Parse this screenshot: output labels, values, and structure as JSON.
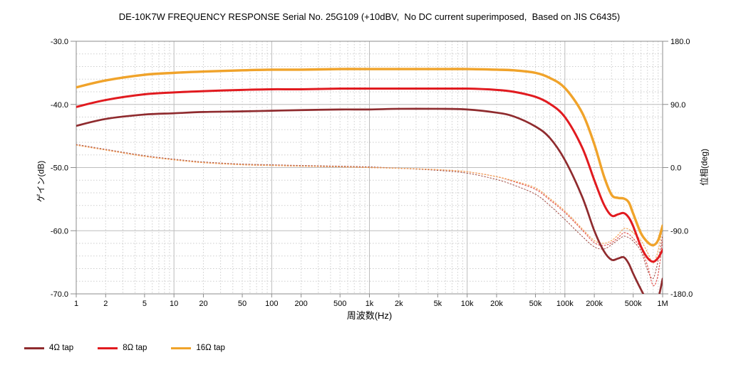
{
  "title": "DE-10K7W FREQUENCY RESPONSE Serial No. 25G109 (+10dBV,  No DC current superimposed,  Based on JIS C6435)",
  "colors": {
    "background": "#ffffff",
    "grid_major": "#bdbdbd",
    "grid_minor": "#cdcdcd",
    "frame": "#8c8c8c",
    "text": "#000000",
    "tap4": "#8f2b2e",
    "tap8": "#e11a1f",
    "tap16": "#f0a32a"
  },
  "chart_data": {
    "type": "line",
    "title": "DE-10K7W FREQUENCY RESPONSE Serial No. 25G109 (+10dBV,  No DC current superimposed,  Based on JIS C6435)",
    "xlabel": "周波数(Hz)",
    "ylabel_left": "ゲイン(dB)",
    "ylabel_right": "位相(deg)",
    "x_scale": "log",
    "x_range": [
      1,
      1000000
    ],
    "y_left_range": [
      -70,
      -30
    ],
    "y_right_range": [
      -180,
      180
    ],
    "grid": "on",
    "legend_position": "bottom-left",
    "x_ticks": [
      {
        "v": 1,
        "label": "1"
      },
      {
        "v": 2,
        "label": "2"
      },
      {
        "v": 5,
        "label": "5"
      },
      {
        "v": 10,
        "label": "10"
      },
      {
        "v": 20,
        "label": "20"
      },
      {
        "v": 50,
        "label": "50"
      },
      {
        "v": 100,
        "label": "100"
      },
      {
        "v": 200,
        "label": "200"
      },
      {
        "v": 500,
        "label": "500"
      },
      {
        "v": 1000,
        "label": "1k"
      },
      {
        "v": 2000,
        "label": "2k"
      },
      {
        "v": 5000,
        "label": "5k"
      },
      {
        "v": 10000,
        "label": "10k"
      },
      {
        "v": 20000,
        "label": "20k"
      },
      {
        "v": 50000,
        "label": "50k"
      },
      {
        "v": 100000,
        "label": "100k"
      },
      {
        "v": 200000,
        "label": "200k"
      },
      {
        "v": 500000,
        "label": "500k"
      },
      {
        "v": 1000000,
        "label": "1M"
      }
    ],
    "y_left_ticks": [
      {
        "v": -30,
        "label": "-30.0"
      },
      {
        "v": -40,
        "label": "-40.0"
      },
      {
        "v": -50,
        "label": "-50.0"
      },
      {
        "v": -60,
        "label": "-60.0"
      },
      {
        "v": -70,
        "label": "-70.0"
      }
    ],
    "y_right_ticks": [
      {
        "v": 180,
        "label": "180.0"
      },
      {
        "v": 90,
        "label": "90.0"
      },
      {
        "v": 0,
        "label": "0.0"
      },
      {
        "v": -90,
        "label": "-90.0"
      },
      {
        "v": -180,
        "label": "-180.0"
      }
    ],
    "x": [
      1,
      2,
      5,
      10,
      20,
      50,
      100,
      200,
      500,
      1000,
      2000,
      5000,
      10000,
      20000,
      30000,
      50000,
      70000,
      100000,
      150000,
      200000,
      250000,
      300000,
      350000,
      400000,
      450000,
      500000,
      600000,
      700000,
      800000,
      900000,
      1000000
    ],
    "series": [
      {
        "name": "4Ω tap",
        "kind": "gain",
        "axis": "left",
        "style": "solid",
        "color": "#8f2b2e",
        "width": 2.7,
        "values": [
          -43.4,
          -42.3,
          -41.6,
          -41.4,
          -41.2,
          -41.1,
          -41.0,
          -40.9,
          -40.8,
          -40.8,
          -40.7,
          -40.7,
          -40.8,
          -41.3,
          -41.9,
          -43.5,
          -45.3,
          -48.8,
          -54.6,
          -60.0,
          -63.2,
          -64.6,
          -64.4,
          -64.2,
          -65.2,
          -66.8,
          -69.3,
          -71.2,
          -72.4,
          -70.8,
          -67.6
        ]
      },
      {
        "name": "8Ω tap",
        "kind": "gain",
        "axis": "left",
        "style": "solid",
        "color": "#e11a1f",
        "width": 3.0,
        "values": [
          -40.4,
          -39.3,
          -38.4,
          -38.1,
          -37.9,
          -37.7,
          -37.6,
          -37.6,
          -37.5,
          -37.5,
          -37.5,
          -37.5,
          -37.5,
          -37.7,
          -38.0,
          -38.8,
          -39.9,
          -42.0,
          -46.8,
          -52.0,
          -55.8,
          -57.6,
          -57.4,
          -57.2,
          -57.9,
          -59.3,
          -62.5,
          -64.3,
          -64.9,
          -64.3,
          -63.0
        ]
      },
      {
        "name": "16Ω tap",
        "kind": "gain",
        "axis": "left",
        "style": "solid",
        "color": "#f0a32a",
        "width": 3.4,
        "values": [
          -37.3,
          -36.2,
          -35.3,
          -35.0,
          -34.8,
          -34.6,
          -34.5,
          -34.5,
          -34.4,
          -34.4,
          -34.4,
          -34.4,
          -34.4,
          -34.5,
          -34.6,
          -35.0,
          -35.8,
          -37.4,
          -41.3,
          -46.3,
          -51.3,
          -54.3,
          -54.8,
          -54.9,
          -55.5,
          -57.3,
          -60.4,
          -61.8,
          -62.3,
          -61.5,
          -59.2
        ]
      },
      {
        "name": "4Ω tap phase",
        "kind": "phase",
        "axis": "right",
        "style": "dotted",
        "color": "#9e4840",
        "width": 1.0,
        "values": [
          33,
          26,
          17,
          12,
          8,
          5,
          4,
          3,
          2,
          1,
          -1,
          -4,
          -8,
          -17,
          -25,
          -38,
          -54,
          -74,
          -98,
          -113,
          -116,
          -110,
          -103,
          -98,
          -100,
          -105,
          -119,
          -146,
          -158,
          -132,
          -96
        ]
      },
      {
        "name": "8Ω tap phase",
        "kind": "phase",
        "axis": "right",
        "style": "dotted",
        "color": "#e25551",
        "width": 1.2,
        "values": [
          32,
          25,
          16,
          11,
          7,
          4,
          3,
          2,
          1,
          0,
          -1,
          -3,
          -6,
          -13,
          -20,
          -31,
          -46,
          -64,
          -89,
          -107,
          -111,
          -107,
          -100,
          -93,
          -95,
          -101,
          -115,
          -140,
          -168,
          -152,
          -102
        ]
      },
      {
        "name": "16Ω tap phase",
        "kind": "phase",
        "axis": "right",
        "style": "dotted",
        "color": "#f2a85a",
        "width": 1.2,
        "values": [
          32,
          25,
          16,
          11,
          7,
          4,
          3,
          2,
          1,
          0,
          -1,
          -3,
          -6,
          -13,
          -19,
          -29,
          -44,
          -62,
          -87,
          -104,
          -108,
          -104,
          -96,
          -87,
          -88,
          -93,
          -104,
          -121,
          -136,
          -118,
          -85
        ]
      }
    ],
    "legend": [
      {
        "label": "4Ω tap",
        "color": "#8f2b2e"
      },
      {
        "label": "8Ω tap",
        "color": "#e11a1f"
      },
      {
        "label": "16Ω tap",
        "color": "#f0a32a"
      }
    ]
  }
}
